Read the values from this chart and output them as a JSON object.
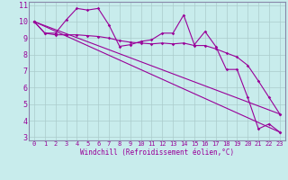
{
  "xlabel": "Windchill (Refroidissement éolien,°C)",
  "bg_color": "#c8ecec",
  "line_color": "#990099",
  "grid_color": "#aacccc",
  "spine_color": "#8888aa",
  "xlim": [
    -0.5,
    23.5
  ],
  "ylim": [
    2.8,
    11.2
  ],
  "xticks": [
    0,
    1,
    2,
    3,
    4,
    5,
    6,
    7,
    8,
    9,
    10,
    11,
    12,
    13,
    14,
    15,
    16,
    17,
    18,
    19,
    20,
    21,
    22,
    23
  ],
  "yticks": [
    3,
    4,
    5,
    6,
    7,
    8,
    9,
    10,
    11
  ],
  "lines": [
    {
      "x": [
        0,
        1,
        2,
        3,
        4,
        5,
        6,
        7,
        8,
        9,
        10,
        11,
        12,
        13,
        14,
        15,
        16,
        17,
        18,
        19,
        20,
        21,
        22,
        23
      ],
      "y": [
        10.0,
        9.3,
        9.3,
        10.1,
        10.8,
        10.7,
        10.8,
        9.8,
        8.5,
        8.6,
        8.8,
        8.9,
        9.3,
        9.3,
        10.4,
        8.6,
        9.4,
        8.5,
        7.1,
        7.1,
        5.4,
        3.5,
        3.8,
        3.3
      ]
    },
    {
      "x": [
        0,
        1,
        2,
        3,
        4,
        5,
        6,
        7,
        8,
        9,
        10,
        11,
        12,
        13,
        14,
        15,
        16,
        17,
        18,
        19,
        20,
        21,
        22,
        23
      ],
      "y": [
        10.0,
        9.3,
        9.2,
        9.2,
        9.2,
        9.15,
        9.1,
        9.0,
        8.85,
        8.75,
        8.7,
        8.65,
        8.7,
        8.65,
        8.7,
        8.55,
        8.55,
        8.35,
        8.1,
        7.85,
        7.35,
        6.4,
        5.4,
        4.4
      ]
    },
    {
      "x": [
        0,
        23
      ],
      "y": [
        10.0,
        3.3
      ]
    },
    {
      "x": [
        0,
        23
      ],
      "y": [
        10.0,
        4.4
      ]
    }
  ]
}
